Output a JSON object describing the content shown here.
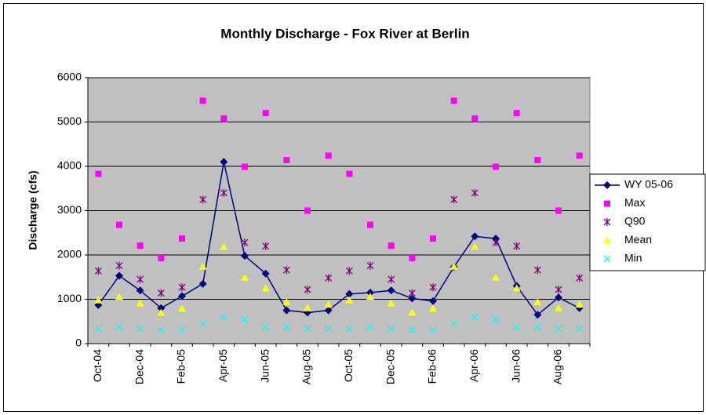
{
  "chart_data": {
    "type": "line",
    "title": "Monthly Discharge - Fox River at Berlin",
    "y_label": "Discharge (cfs)",
    "categories": [
      "Oct-04",
      null,
      "Dec-04",
      null,
      "Feb-05",
      null,
      "Apr-05",
      null,
      "Jun-05",
      null,
      "Aug-05",
      null,
      "Oct-05",
      null,
      "Dec-05",
      null,
      "Feb-06",
      null,
      "Apr-06",
      null,
      "Jun-06",
      null,
      "Aug-06",
      null
    ],
    "ylim": [
      0,
      6000
    ],
    "yticks": [
      0,
      1000,
      2000,
      3000,
      4000,
      5000,
      6000
    ],
    "grid": true,
    "legend": "right",
    "series": [
      {
        "name": "WY 05-06",
        "color": "#000080",
        "marker": "diamond",
        "line": true,
        "values": [
          870,
          1530,
          1200,
          800,
          1070,
          1350,
          4100,
          1980,
          1580,
          750,
          700,
          750,
          1120,
          1150,
          1200,
          1020,
          960,
          1730,
          2420,
          2370,
          1300,
          650,
          1040,
          800
        ]
      },
      {
        "name": "Max",
        "color": "#ff00ff",
        "marker": "square",
        "line": false,
        "values": [
          3830,
          2680,
          2210,
          1930,
          2370,
          5480,
          5080,
          3990,
          5200,
          4140,
          3000,
          4240,
          3830,
          2680,
          2210,
          1930,
          2370,
          5480,
          5080,
          3990,
          5200,
          4140,
          3000,
          4240
        ]
      },
      {
        "name": "Q90",
        "color": "#800080",
        "marker": "asterisk",
        "line": false,
        "values": [
          1640,
          1760,
          1450,
          1140,
          1270,
          3250,
          3400,
          2280,
          2200,
          1660,
          1220,
          1480,
          1640,
          1760,
          1450,
          1140,
          1270,
          3250,
          3400,
          2280,
          2200,
          1660,
          1220,
          1480
        ]
      },
      {
        "name": "Mean",
        "color": "#ffff00",
        "marker": "triangle",
        "line": false,
        "values": [
          980,
          1060,
          910,
          700,
          790,
          1740,
          2190,
          1490,
          1250,
          940,
          800,
          880,
          980,
          1060,
          910,
          700,
          790,
          1740,
          2190,
          1490,
          1250,
          940,
          800,
          880
        ]
      },
      {
        "name": "Min",
        "color": "#00ffff",
        "marker": "x",
        "line": false,
        "values": [
          340,
          370,
          340,
          310,
          310,
          450,
          600,
          540,
          370,
          370,
          340,
          340,
          340,
          370,
          340,
          310,
          310,
          450,
          600,
          540,
          370,
          370,
          340,
          340
        ]
      }
    ]
  }
}
